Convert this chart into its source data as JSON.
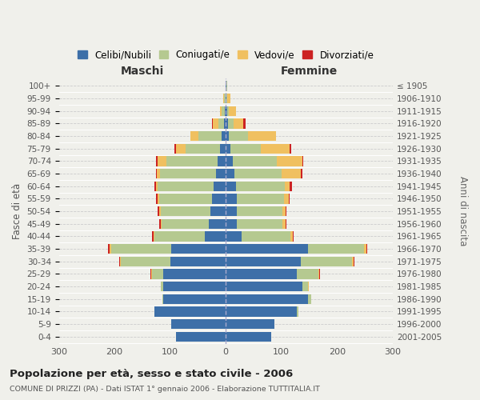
{
  "age_groups": [
    "0-4",
    "5-9",
    "10-14",
    "15-19",
    "20-24",
    "25-29",
    "30-34",
    "35-39",
    "40-44",
    "45-49",
    "50-54",
    "55-59",
    "60-64",
    "65-69",
    "70-74",
    "75-79",
    "80-84",
    "85-89",
    "90-94",
    "95-99",
    "100+"
  ],
  "birth_years": [
    "2001-2005",
    "1996-2000",
    "1991-1995",
    "1986-1990",
    "1981-1985",
    "1976-1980",
    "1971-1975",
    "1966-1970",
    "1961-1965",
    "1956-1960",
    "1951-1955",
    "1946-1950",
    "1941-1945",
    "1936-1940",
    "1931-1935",
    "1926-1930",
    "1921-1925",
    "1916-1920",
    "1911-1915",
    "1906-1910",
    "≤ 1905"
  ],
  "males": {
    "celibi": [
      90,
      98,
      128,
      112,
      112,
      112,
      100,
      98,
      38,
      30,
      27,
      25,
      22,
      18,
      15,
      10,
      7,
      3,
      2,
      1,
      1
    ],
    "coniugati": [
      0,
      0,
      0,
      2,
      5,
      20,
      88,
      108,
      90,
      85,
      90,
      95,
      100,
      100,
      92,
      62,
      42,
      10,
      5,
      2,
      0
    ],
    "vedovi": [
      0,
      0,
      0,
      0,
      0,
      2,
      2,
      3,
      2,
      2,
      3,
      3,
      4,
      6,
      15,
      18,
      15,
      10,
      4,
      2,
      0
    ],
    "divorziati": [
      0,
      0,
      0,
      0,
      0,
      1,
      2,
      3,
      2,
      2,
      2,
      2,
      2,
      2,
      4,
      2,
      0,
      2,
      0,
      0,
      0
    ]
  },
  "females": {
    "nubili": [
      82,
      88,
      128,
      148,
      138,
      128,
      135,
      148,
      28,
      20,
      20,
      20,
      18,
      15,
      12,
      8,
      5,
      4,
      2,
      1,
      1
    ],
    "coniugate": [
      0,
      0,
      2,
      5,
      10,
      38,
      92,
      100,
      88,
      82,
      82,
      85,
      88,
      85,
      80,
      55,
      35,
      10,
      4,
      2,
      1
    ],
    "vedove": [
      0,
      0,
      0,
      0,
      1,
      2,
      2,
      4,
      4,
      5,
      5,
      8,
      8,
      35,
      45,
      52,
      50,
      18,
      12,
      5,
      0
    ],
    "divorziate": [
      0,
      0,
      0,
      0,
      0,
      1,
      2,
      2,
      2,
      2,
      2,
      2,
      5,
      3,
      2,
      2,
      0,
      4,
      0,
      0,
      0
    ]
  },
  "colors": {
    "celibi_nubili": "#3d6fa8",
    "coniugati": "#b5c990",
    "vedovi": "#f0c060",
    "divorziati": "#cc2222"
  },
  "title": "Popolazione per età, sesso e stato civile - 2006",
  "subtitle": "COMUNE DI PRIZZI (PA) - Dati ISTAT 1° gennaio 2006 - Elaborazione TUTTITALIA.IT",
  "ylabel_left": "Fasce di età",
  "ylabel_right": "Anni di nascita",
  "xlabel_maschi": "Maschi",
  "xlabel_femmine": "Femmine",
  "xlim": 300,
  "bg_color": "#f0f0eb",
  "grid_color": "#cccccc"
}
